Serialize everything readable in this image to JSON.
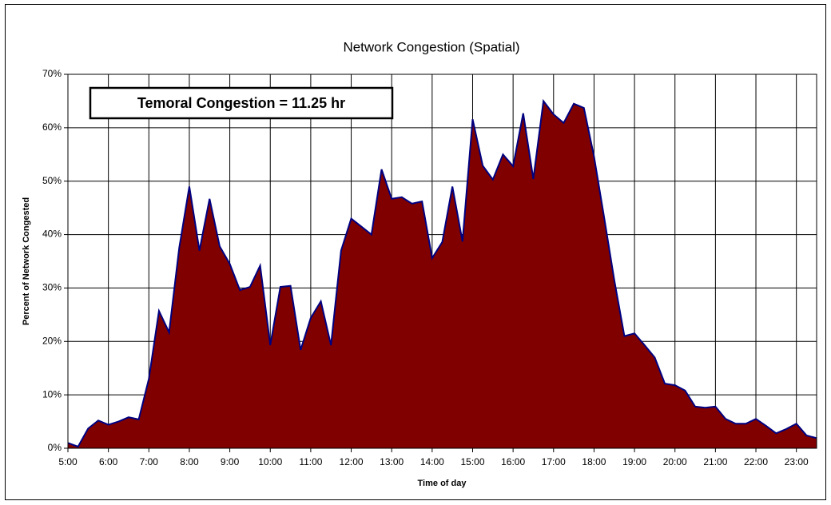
{
  "chart_data": {
    "type": "area",
    "title": "Network Congestion (Spatial)",
    "annotation": "Temoral Congestion = 11.25 hr",
    "xlabel": "Time of day",
    "ylabel": "Percent of Network Congested",
    "categories": [
      "5:00",
      null,
      null,
      null,
      "6:00",
      null,
      null,
      null,
      "7:00",
      null,
      null,
      null,
      "8:00",
      null,
      null,
      null,
      "9:00",
      null,
      null,
      null,
      "10:00",
      null,
      null,
      null,
      "11:00",
      null,
      null,
      null,
      "12:00",
      null,
      null,
      null,
      "13:00",
      null,
      null,
      null,
      "14:00",
      null,
      null,
      null,
      "15:00",
      null,
      null,
      null,
      "16:00",
      null,
      null,
      null,
      "17:00",
      null,
      null,
      null,
      "18:00",
      null,
      null,
      null,
      "19:00",
      null,
      null,
      null,
      "20:00",
      null,
      null,
      null,
      "21:00",
      null,
      null,
      null,
      "22:00",
      null,
      null,
      null,
      "23:00",
      null,
      null
    ],
    "series": [
      {
        "name": "Percent of Network Congested",
        "color": "#800000",
        "line_color": "#000080",
        "values": [
          1,
          0.3,
          3.7,
          5.2,
          4.4,
          5,
          5.8,
          5.4,
          13,
          25.7,
          21.7,
          37.5,
          49,
          37,
          46.7,
          37.8,
          34.5,
          29.6,
          30.2,
          34.2,
          19.3,
          30.2,
          30.4,
          18.4,
          24.4,
          27.5,
          19.3,
          37,
          43,
          41.5,
          40,
          52.2,
          46.7,
          47,
          45.8,
          46.2,
          35.6,
          38.6,
          49,
          38.7,
          61.6,
          52.9,
          50.3,
          55,
          52.8,
          62.7,
          50.4,
          65,
          62.5,
          60.9,
          64.5,
          63.7,
          54.6,
          43.2,
          31.5,
          21,
          21.5,
          19.3,
          17,
          12.1,
          11.8,
          10.8,
          7.8,
          7.6,
          7.8,
          5.5,
          4.6,
          4.6,
          5.5,
          4.2,
          2.8,
          3.6,
          4.6,
          2.4,
          1.9
        ]
      }
    ],
    "ylim": [
      0,
      70
    ],
    "yticks": [
      {
        "value": 0,
        "label": "0%"
      },
      {
        "value": 10,
        "label": "10%"
      },
      {
        "value": 20,
        "label": "20%"
      },
      {
        "value": 30,
        "label": "30%"
      },
      {
        "value": 40,
        "label": "40%"
      },
      {
        "value": 50,
        "label": "50%"
      },
      {
        "value": 60,
        "label": "60%"
      },
      {
        "value": 70,
        "label": "70%"
      }
    ],
    "grid": true
  }
}
